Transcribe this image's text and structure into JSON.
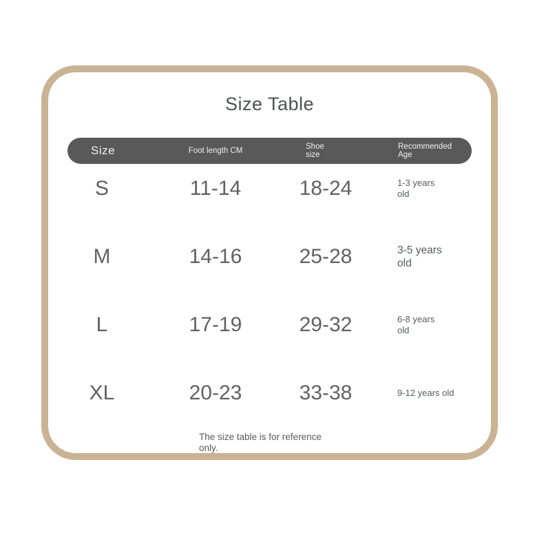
{
  "page": {
    "title": "Size Table",
    "footnote": "The size table is for reference only."
  },
  "table": {
    "columns": [
      {
        "label": "Size"
      },
      {
        "label": "Foot length CM"
      },
      {
        "label": "Shoe\nsize"
      },
      {
        "label": "Recommended\nAge"
      }
    ],
    "rows": [
      {
        "size": "S",
        "foot_length_cm": "11-14",
        "shoe_size": "18-24",
        "recommended_age": "1-3 years\nold"
      },
      {
        "size": "M",
        "foot_length_cm": "14-16",
        "shoe_size": "25-28",
        "recommended_age": "3-5 years\nold"
      },
      {
        "size": "L",
        "foot_length_cm": "17-19",
        "shoe_size": "29-32",
        "recommended_age": "6-8 years\nold"
      },
      {
        "size": "XL",
        "foot_length_cm": "20-23",
        "shoe_size": "33-38",
        "recommended_age": "9-12 years old"
      }
    ]
  },
  "chart_data": {
    "type": "table",
    "title": "Size Table",
    "columns": [
      "Size",
      "Foot length CM",
      "Shoe size",
      "Recommended Age"
    ],
    "rows": [
      [
        "S",
        "11-14",
        "18-24",
        "1-3 years old"
      ],
      [
        "M",
        "14-16",
        "25-28",
        "3-5 years old"
      ],
      [
        "L",
        "17-19",
        "29-32",
        "6-8 years old"
      ],
      [
        "XL",
        "20-23",
        "33-38",
        "9-12 years old"
      ]
    ],
    "footnote": "The size table is for reference only."
  },
  "colors": {
    "frame_border": "#cab394",
    "header_background": "#595959",
    "header_text": "#f0f0f0",
    "body_text": "#616161",
    "title_text": "#4d5156",
    "background": "#ffffff"
  }
}
